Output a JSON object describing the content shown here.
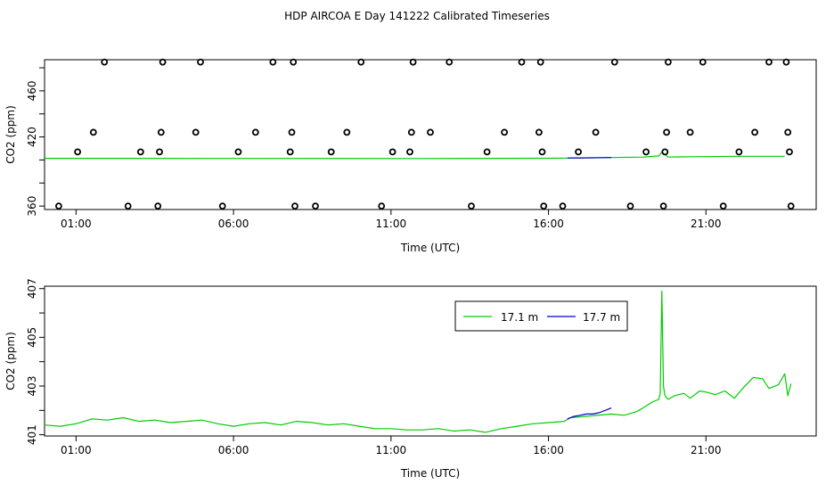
{
  "title": "HDP AIRCOA E  Day 141222  Calibrated Timeseries",
  "colors": {
    "series1": "#00cc00",
    "series2": "#0000cc",
    "calib": "#000000"
  },
  "chart_data": [
    {
      "type": "scatter",
      "xlabel": "Time (UTC)",
      "ylabel": "CO2 (ppm)",
      "xlim": [
        0.0,
        24.5
      ],
      "ylim": [
        357,
        487
      ],
      "xticks": [
        "01:00",
        "06:00",
        "11:00",
        "16:00",
        "21:00"
      ],
      "xtick_values": [
        1,
        6,
        11,
        16,
        21
      ],
      "yticks": [
        "360",
        "380",
        "400",
        "420",
        "440",
        "460",
        "480"
      ],
      "ytick_values": [
        360,
        380,
        400,
        420,
        440,
        460,
        480
      ],
      "ytick_labels_shown": [
        "360",
        "420",
        "460"
      ],
      "calibration_points": {
        "x": [
          0.45,
          1.05,
          1.55,
          1.9,
          2.65,
          3.05,
          3.6,
          3.65,
          3.7,
          3.75,
          4.8,
          4.95,
          5.65,
          6.15,
          6.7,
          7.25,
          7.8,
          7.85,
          7.9,
          7.95,
          8.6,
          9.1,
          9.6,
          10.05,
          10.7,
          11.05,
          11.6,
          11.65,
          11.7,
          12.25,
          12.85,
          13.55,
          14.05,
          14.6,
          15.15,
          15.7,
          15.75,
          15.8,
          15.85,
          16.45,
          16.95,
          17.5,
          18.1,
          18.6,
          19.1,
          19.65,
          19.7,
          19.75,
          19.8,
          20.5,
          20.9,
          21.55,
          22.05,
          22.55,
          23.0,
          23.55,
          23.6,
          23.65,
          23.7
        ],
        "y": [
          360,
          407,
          424,
          485,
          360,
          407,
          360,
          407,
          424,
          485,
          424,
          485,
          360,
          407,
          424,
          485,
          407,
          424,
          485,
          360,
          360,
          407,
          424,
          485,
          360,
          407,
          407,
          424,
          485,
          424,
          485,
          360,
          407,
          424,
          485,
          424,
          485,
          407,
          360,
          360,
          407,
          424,
          485,
          360,
          407,
          360,
          407,
          424,
          485,
          424,
          485,
          360,
          407,
          424,
          485,
          485,
          424,
          407,
          360
        ]
      },
      "series": [
        {
          "x": [
            0.0,
            12.0,
            16.0,
            17.0,
            19.0,
            19.5,
            19.6,
            19.8,
            20.5,
            22.0,
            23.5
          ],
          "values": [
            401.4,
            401.3,
            401.5,
            401.7,
            402.5,
            403.5,
            406.8,
            402.5,
            402.8,
            403.2,
            403.2
          ]
        },
        {
          "x": [
            16.6,
            17.0,
            17.4,
            17.7,
            18.0
          ],
          "values": [
            401.7,
            401.8,
            401.9,
            402.0,
            402.1
          ]
        }
      ]
    },
    {
      "type": "line",
      "xlabel": "Time (UTC)",
      "ylabel": "CO2 (ppm)",
      "xlim": [
        0.0,
        24.5
      ],
      "ylim": [
        400.95,
        407.1
      ],
      "xticks": [
        "01:00",
        "06:00",
        "11:00",
        "16:00",
        "21:00"
      ],
      "xtick_values": [
        1,
        6,
        11,
        16,
        21
      ],
      "yticks": [
        "401",
        "402",
        "403",
        "404",
        "405",
        "406",
        "407"
      ],
      "ytick_values": [
        401,
        402,
        403,
        404,
        405,
        406,
        407
      ],
      "ytick_labels_shown": [
        "401",
        "403",
        "405",
        "407"
      ],
      "legend": {
        "position": "top-right"
      },
      "series": [
        {
          "name": "17.1 m",
          "x": [
            0.0,
            0.5,
            1.0,
            1.5,
            2.0,
            2.5,
            3.0,
            3.5,
            4.0,
            4.5,
            5.0,
            5.5,
            6.0,
            6.5,
            7.0,
            7.5,
            8.0,
            8.5,
            9.0,
            9.5,
            10.0,
            10.5,
            11.0,
            11.5,
            12.0,
            12.5,
            13.0,
            13.5,
            14.0,
            14.5,
            15.0,
            15.5,
            16.0,
            16.5,
            16.7,
            18.0,
            18.4,
            18.8,
            19.0,
            19.3,
            19.5,
            19.55,
            19.6,
            19.65,
            19.7,
            19.8,
            20.0,
            20.3,
            20.5,
            20.8,
            21.0,
            21.3,
            21.6,
            21.9,
            22.2,
            22.5,
            22.8,
            23.0,
            23.3,
            23.5,
            23.6,
            23.7
          ],
          "values": [
            401.4,
            401.35,
            401.45,
            401.65,
            401.6,
            401.7,
            401.55,
            401.6,
            401.5,
            401.55,
            401.6,
            401.45,
            401.35,
            401.45,
            401.5,
            401.4,
            401.55,
            401.5,
            401.4,
            401.45,
            401.35,
            401.25,
            401.25,
            401.2,
            401.2,
            401.25,
            401.15,
            401.2,
            401.1,
            401.25,
            401.35,
            401.45,
            401.5,
            401.55,
            401.7,
            401.85,
            401.8,
            401.95,
            402.1,
            402.35,
            402.45,
            402.7,
            406.9,
            403.0,
            402.6,
            402.45,
            402.6,
            402.7,
            402.5,
            402.8,
            402.75,
            402.65,
            402.8,
            402.5,
            402.95,
            403.35,
            403.3,
            402.9,
            403.05,
            403.5,
            402.6,
            403.1
          ]
        },
        {
          "name": "17.7 m",
          "x": [
            16.6,
            16.8,
            17.0,
            17.2,
            17.4,
            17.6,
            17.8,
            18.0
          ],
          "values": [
            401.65,
            401.75,
            401.8,
            401.85,
            401.85,
            401.9,
            402.0,
            402.1
          ]
        }
      ]
    }
  ]
}
